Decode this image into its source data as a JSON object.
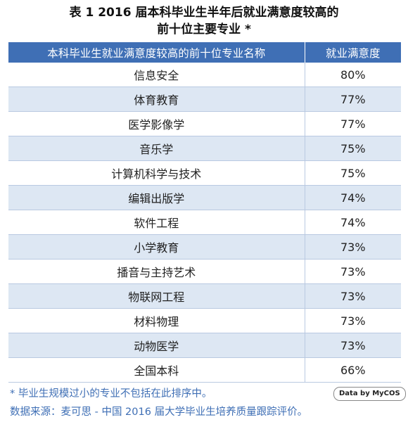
{
  "title": {
    "line1": "表 1  2016 届本科毕业生半年后就业满意度较高的",
    "line2": "前十位主要专业 *"
  },
  "table": {
    "headers": [
      "本科毕业生就业满意度较高的前十位专业名称",
      "就业满意度"
    ],
    "rows": [
      {
        "major": "信息安全",
        "satisfaction": "80%"
      },
      {
        "major": "体育教育",
        "satisfaction": "77%"
      },
      {
        "major": "医学影像学",
        "satisfaction": "77%"
      },
      {
        "major": "音乐学",
        "satisfaction": "75%"
      },
      {
        "major": "计算机科学与技术",
        "satisfaction": "75%"
      },
      {
        "major": "编辑出版学",
        "satisfaction": "74%"
      },
      {
        "major": "软件工程",
        "satisfaction": "74%"
      },
      {
        "major": "小学教育",
        "satisfaction": "73%"
      },
      {
        "major": "播音与主持艺术",
        "satisfaction": "73%"
      },
      {
        "major": "物联网工程",
        "satisfaction": "73%"
      },
      {
        "major": "材料物理",
        "satisfaction": "73%"
      },
      {
        "major": "动物医学",
        "satisfaction": "73%"
      },
      {
        "major": "全国本科",
        "satisfaction": "66%"
      }
    ]
  },
  "footnote": "* 毕业生规模过小的专业不包括在此排序中。",
  "source": "数据来源：麦可思 - 中国 2016 届大学毕业生培养质量跟踪评价。",
  "badge": "Data by MyCOS",
  "colors": {
    "header_bg": "#3f6fb5",
    "stripe_bg": "#dde7f3",
    "note_text": "#3f6fb5"
  }
}
